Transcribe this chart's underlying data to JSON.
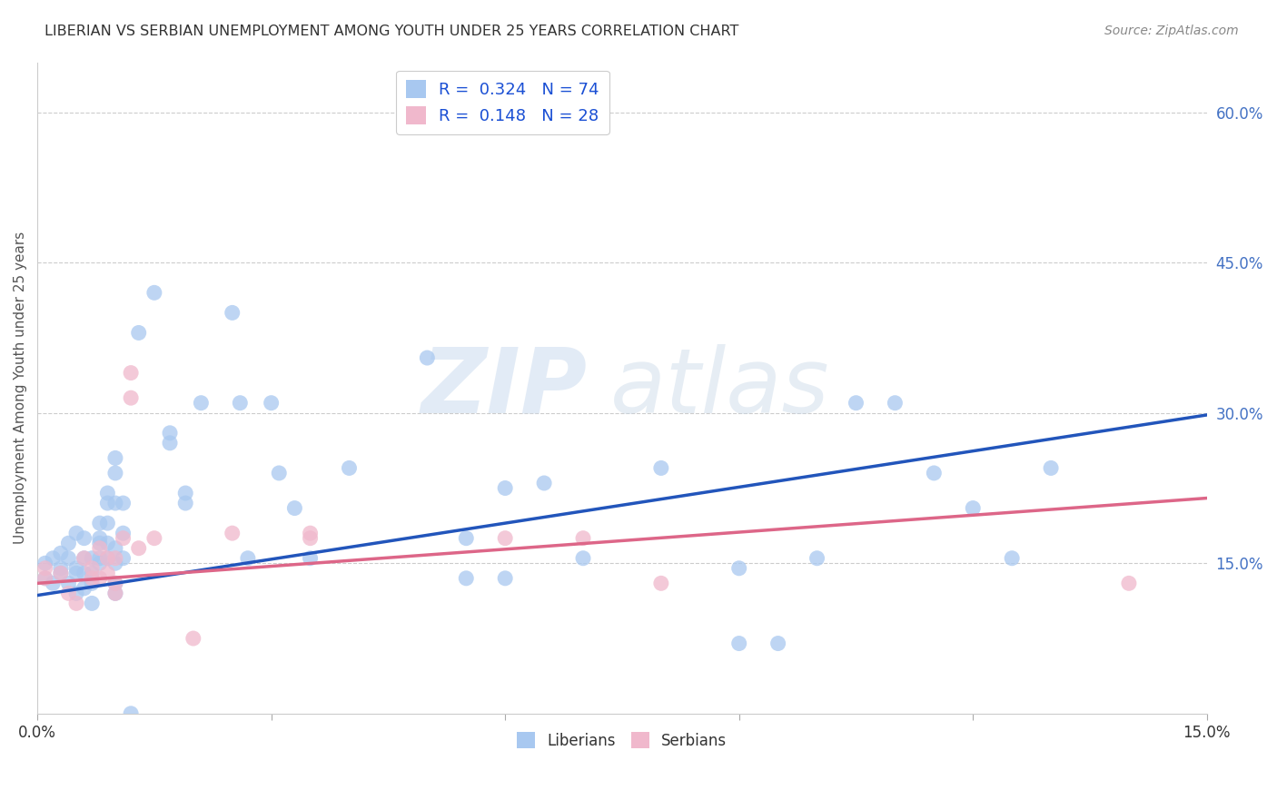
{
  "title": "LIBERIAN VS SERBIAN UNEMPLOYMENT AMONG YOUTH UNDER 25 YEARS CORRELATION CHART",
  "source": "Source: ZipAtlas.com",
  "ylabel": "Unemployment Among Youth under 25 years",
  "watermark_zip": "ZIP",
  "watermark_atlas": "atlas",
  "xlim": [
    0.0,
    0.15
  ],
  "ylim": [
    0.0,
    0.65
  ],
  "x_ticks": [
    0.0,
    0.03,
    0.06,
    0.09,
    0.12,
    0.15
  ],
  "x_tick_labels": [
    "0.0%",
    "",
    "",
    "",
    "",
    "15.0%"
  ],
  "y_ticks_right": [
    0.15,
    0.3,
    0.45,
    0.6
  ],
  "y_tick_labels_right": [
    "15.0%",
    "30.0%",
    "45.0%",
    "60.0%"
  ],
  "liberian_color": "#a8c8f0",
  "serbian_color": "#f0b8cc",
  "liberian_edge_color": "#6699cc",
  "serbian_edge_color": "#cc8899",
  "liberian_line_color": "#2255bb",
  "serbian_line_color": "#dd6688",
  "R_liberian": 0.324,
  "N_liberian": 74,
  "R_serbian": 0.148,
  "N_serbian": 28,
  "liberian_scatter": [
    [
      0.001,
      0.135
    ],
    [
      0.001,
      0.15
    ],
    [
      0.002,
      0.155
    ],
    [
      0.002,
      0.13
    ],
    [
      0.003,
      0.16
    ],
    [
      0.003,
      0.14
    ],
    [
      0.003,
      0.145
    ],
    [
      0.004,
      0.17
    ],
    [
      0.004,
      0.155
    ],
    [
      0.004,
      0.13
    ],
    [
      0.005,
      0.18
    ],
    [
      0.005,
      0.145
    ],
    [
      0.005,
      0.14
    ],
    [
      0.005,
      0.12
    ],
    [
      0.006,
      0.175
    ],
    [
      0.006,
      0.155
    ],
    [
      0.006,
      0.14
    ],
    [
      0.006,
      0.125
    ],
    [
      0.007,
      0.155
    ],
    [
      0.007,
      0.13
    ],
    [
      0.007,
      0.14
    ],
    [
      0.007,
      0.11
    ],
    [
      0.008,
      0.19
    ],
    [
      0.008,
      0.175
    ],
    [
      0.008,
      0.17
    ],
    [
      0.008,
      0.155
    ],
    [
      0.008,
      0.15
    ],
    [
      0.009,
      0.22
    ],
    [
      0.009,
      0.21
    ],
    [
      0.009,
      0.19
    ],
    [
      0.009,
      0.17
    ],
    [
      0.009,
      0.155
    ],
    [
      0.01,
      0.255
    ],
    [
      0.01,
      0.24
    ],
    [
      0.01,
      0.21
    ],
    [
      0.01,
      0.165
    ],
    [
      0.01,
      0.15
    ],
    [
      0.01,
      0.13
    ],
    [
      0.01,
      0.12
    ],
    [
      0.011,
      0.21
    ],
    [
      0.011,
      0.18
    ],
    [
      0.011,
      0.155
    ],
    [
      0.012,
      0.0
    ],
    [
      0.013,
      0.38
    ],
    [
      0.015,
      0.42
    ],
    [
      0.017,
      0.28
    ],
    [
      0.017,
      0.27
    ],
    [
      0.019,
      0.22
    ],
    [
      0.019,
      0.21
    ],
    [
      0.021,
      0.31
    ],
    [
      0.025,
      0.4
    ],
    [
      0.026,
      0.31
    ],
    [
      0.027,
      0.155
    ],
    [
      0.03,
      0.31
    ],
    [
      0.031,
      0.24
    ],
    [
      0.033,
      0.205
    ],
    [
      0.035,
      0.155
    ],
    [
      0.04,
      0.245
    ],
    [
      0.05,
      0.355
    ],
    [
      0.055,
      0.175
    ],
    [
      0.055,
      0.135
    ],
    [
      0.06,
      0.225
    ],
    [
      0.06,
      0.135
    ],
    [
      0.065,
      0.23
    ],
    [
      0.07,
      0.155
    ],
    [
      0.08,
      0.245
    ],
    [
      0.09,
      0.145
    ],
    [
      0.09,
      0.07
    ],
    [
      0.095,
      0.07
    ],
    [
      0.1,
      0.155
    ],
    [
      0.105,
      0.31
    ],
    [
      0.11,
      0.31
    ],
    [
      0.115,
      0.24
    ],
    [
      0.12,
      0.205
    ],
    [
      0.125,
      0.155
    ],
    [
      0.13,
      0.245
    ]
  ],
  "serbian_scatter": [
    [
      0.001,
      0.145
    ],
    [
      0.001,
      0.135
    ],
    [
      0.003,
      0.14
    ],
    [
      0.004,
      0.12
    ],
    [
      0.005,
      0.11
    ],
    [
      0.006,
      0.155
    ],
    [
      0.007,
      0.145
    ],
    [
      0.007,
      0.135
    ],
    [
      0.008,
      0.165
    ],
    [
      0.008,
      0.135
    ],
    [
      0.009,
      0.155
    ],
    [
      0.009,
      0.14
    ],
    [
      0.01,
      0.155
    ],
    [
      0.01,
      0.13
    ],
    [
      0.01,
      0.12
    ],
    [
      0.011,
      0.175
    ],
    [
      0.012,
      0.34
    ],
    [
      0.012,
      0.315
    ],
    [
      0.013,
      0.165
    ],
    [
      0.015,
      0.175
    ],
    [
      0.02,
      0.075
    ],
    [
      0.025,
      0.18
    ],
    [
      0.035,
      0.175
    ],
    [
      0.035,
      0.18
    ],
    [
      0.06,
      0.175
    ],
    [
      0.07,
      0.175
    ],
    [
      0.08,
      0.13
    ],
    [
      0.14,
      0.13
    ]
  ],
  "liberian_trendline": [
    [
      0.0,
      0.118
    ],
    [
      0.15,
      0.298
    ]
  ],
  "serbian_trendline": [
    [
      0.0,
      0.13
    ],
    [
      0.15,
      0.215
    ]
  ],
  "background_color": "#ffffff",
  "grid_color": "#cccccc",
  "legend_top_label1": "R =  0.324   N = 74",
  "legend_top_label2": "R =  0.148   N = 28"
}
